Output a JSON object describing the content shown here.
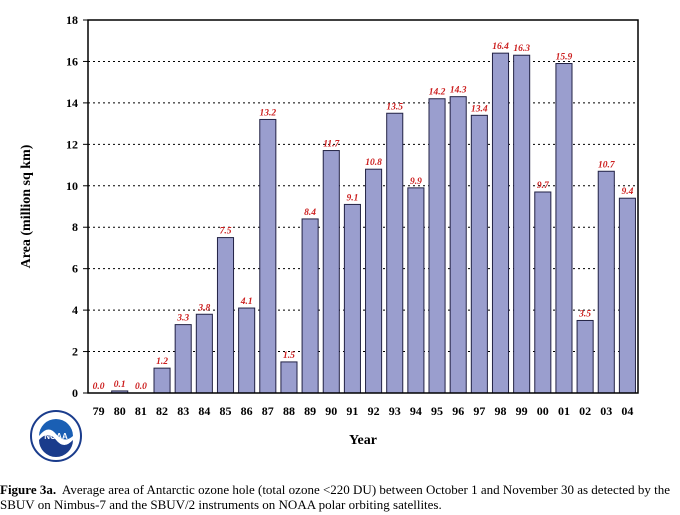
{
  "chart_data": {
    "type": "bar",
    "title": "",
    "xlabel": "Year",
    "ylabel": "Area (million sq km)",
    "categories": [
      "79",
      "80",
      "81",
      "82",
      "83",
      "84",
      "85",
      "86",
      "87",
      "88",
      "89",
      "90",
      "91",
      "92",
      "93",
      "94",
      "95",
      "96",
      "97",
      "98",
      "99",
      "00",
      "01",
      "02",
      "03",
      "04"
    ],
    "values": [
      0.0,
      0.1,
      0.0,
      1.2,
      3.3,
      3.8,
      7.5,
      4.1,
      13.2,
      1.5,
      8.4,
      11.7,
      9.1,
      10.8,
      13.5,
      9.9,
      14.2,
      14.3,
      13.4,
      16.4,
      16.3,
      9.7,
      15.9,
      3.5,
      10.7,
      9.4
    ],
    "data_labels": [
      "0.0",
      "0.1",
      "0.0",
      "1.2",
      "3.3",
      "3.8",
      "7.5",
      "4.1",
      "13.2",
      "1.5",
      "8.4",
      "11.7",
      "9.1",
      "10.8",
      "13.5",
      "9.9",
      "14.2",
      "14.3",
      "13.4",
      "16.4",
      "16.3",
      "9.7",
      "15.9",
      "3.5",
      "10.7",
      "9.4"
    ],
    "ylim": [
      0,
      18
    ],
    "yticks": [
      "0",
      "2",
      "4",
      "6",
      "8",
      "10",
      "12",
      "14",
      "16",
      "18"
    ],
    "grid": "horizontal dotted",
    "colors": {
      "bar": "#9a9ece",
      "bar_edge": "#222244",
      "label": "#cc1f1f"
    }
  },
  "logo": {
    "name": "noaa-logo",
    "text": "NOAA"
  },
  "caption": {
    "lead": "Figure 3a.",
    "text": "Average area of Antarctic ozone hole (total ozone <220 DU) between October 1 and November 30 as detected by the SBUV on Nimbus-7 and the SBUV/2 instruments on NOAA polar orbiting satellites."
  }
}
